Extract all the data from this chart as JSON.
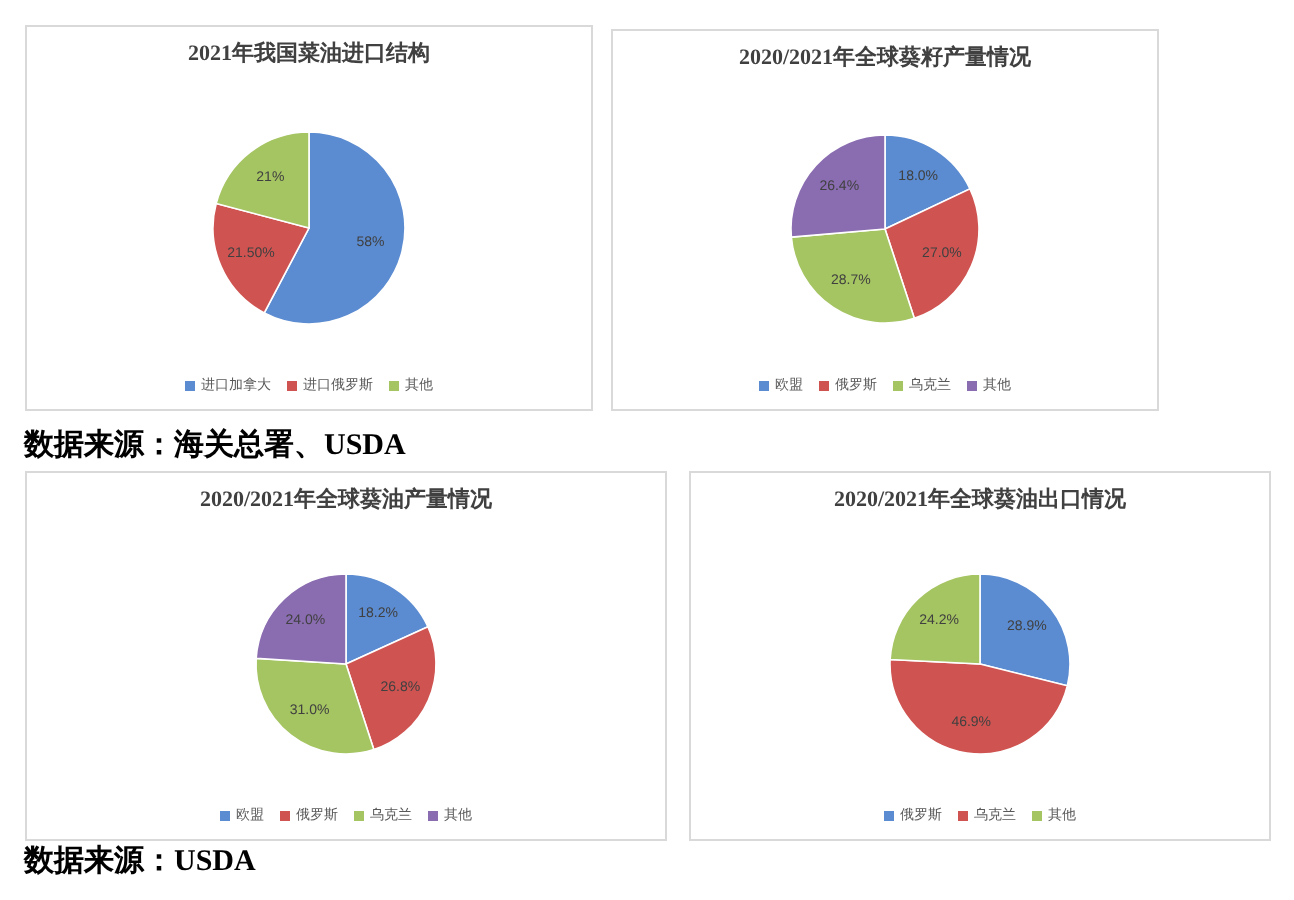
{
  "chart_data": [
    {
      "type": "pie",
      "title": "2021年我国菜油进口结构",
      "categories": [
        "进口加拿大",
        "进口俄罗斯",
        "其他"
      ],
      "values": [
        58,
        21.5,
        21
      ],
      "colors": [
        "#5B8BD0",
        "#CF5451",
        "#A5C462"
      ],
      "value_labels": [
        "58%",
        "21.50%",
        "21%"
      ],
      "legend": "bottom",
      "annotations": [
        "数据来源：海关总署、USDA"
      ]
    },
    {
      "type": "pie",
      "title": "2020/2021年全球葵籽产量情况",
      "categories": [
        "欧盟",
        "俄罗斯",
        "乌克兰",
        "其他"
      ],
      "values": [
        18.0,
        27.0,
        28.7,
        26.4
      ],
      "colors": [
        "#5B8BD0",
        "#CF5451",
        "#A5C462",
        "#8A6CB0"
      ],
      "value_labels": [
        "18.0%",
        "27.0%",
        "28.7%",
        "26.4%"
      ],
      "legend": "bottom"
    },
    {
      "type": "pie",
      "title": "2020/2021年全球葵油产量情况",
      "categories": [
        "欧盟",
        "俄罗斯",
        "乌克兰",
        "其他"
      ],
      "values": [
        18.2,
        26.8,
        31.0,
        24.0
      ],
      "colors": [
        "#5B8BD0",
        "#CF5451",
        "#A5C462",
        "#8A6CB0"
      ],
      "value_labels": [
        "18.2%",
        "26.8%",
        "31.0%",
        "24.0%"
      ],
      "legend": "bottom",
      "annotations": [
        "数据来源：USDA"
      ]
    },
    {
      "type": "pie",
      "title": "2020/2021年全球葵油出口情况",
      "categories": [
        "俄罗斯",
        "乌克兰",
        "其他"
      ],
      "values": [
        28.9,
        46.9,
        24.2
      ],
      "colors": [
        "#5B8BD0",
        "#CF5451",
        "#A5C462"
      ],
      "value_labels": [
        "28.9%",
        "46.9%",
        "24.2%"
      ],
      "legend": "bottom"
    }
  ]
}
